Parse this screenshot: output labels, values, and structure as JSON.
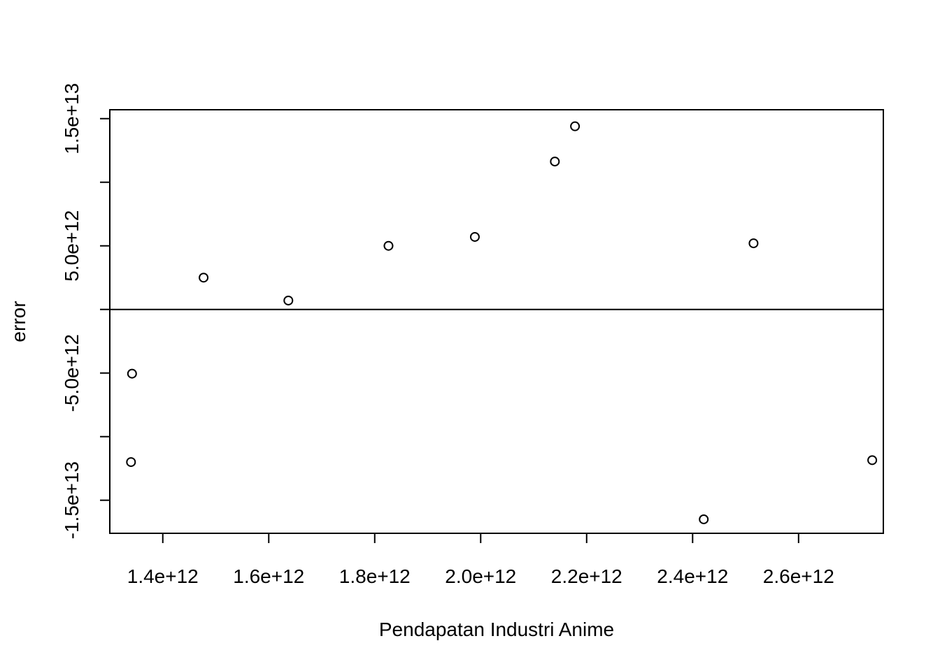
{
  "chart_data": {
    "type": "scatter",
    "title": "",
    "xlabel": "Pendapatan Industri Anime",
    "ylabel": "error",
    "xlim": [
      1300000000000.0,
      2760000000000.0
    ],
    "ylim": [
      -17600000000000.0,
      15700000000000.0
    ],
    "x_ticks": [
      1400000000000.0,
      1600000000000.0,
      1800000000000.0,
      2000000000000.0,
      2200000000000.0,
      2400000000000.0,
      2600000000000.0
    ],
    "x_tick_labels": [
      "1.4e+12",
      "1.6e+12",
      "1.8e+12",
      "2.0e+12",
      "2.2e+12",
      "2.4e+12",
      "2.6e+12"
    ],
    "y_ticks": [
      -15000000000000.0,
      -10000000000000.0,
      -5000000000000.0,
      0,
      5000000000000.0,
      10000000000000.0,
      15000000000000.0
    ],
    "y_tick_labels": [
      "-1.5e+13",
      "",
      "-5.0e+12",
      "",
      "5.0e+12",
      "",
      "1.5e+13"
    ],
    "reference_line": {
      "orientation": "horizontal",
      "y": 0
    },
    "grid": false,
    "legend": "none",
    "point_color": "#000000",
    "points": [
      {
        "x": 1340000000000.0,
        "y": -12000000000000.0
      },
      {
        "x": 1342000000000.0,
        "y": -5050000000000.0
      },
      {
        "x": 1477000000000.0,
        "y": 2500000000000.0
      },
      {
        "x": 1637000000000.0,
        "y": 700000000000.0
      },
      {
        "x": 1826000000000.0,
        "y": 5000000000000.0
      },
      {
        "x": 1989000000000.0,
        "y": 5700000000000.0
      },
      {
        "x": 2140000000000.0,
        "y": 11630000000000.0
      },
      {
        "x": 2178000000000.0,
        "y": 14400000000000.0
      },
      {
        "x": 2421000000000.0,
        "y": -16500000000000.0
      },
      {
        "x": 2515000000000.0,
        "y": 5200000000000.0
      },
      {
        "x": 2739000000000.0,
        "y": -11850000000000.0
      }
    ]
  }
}
